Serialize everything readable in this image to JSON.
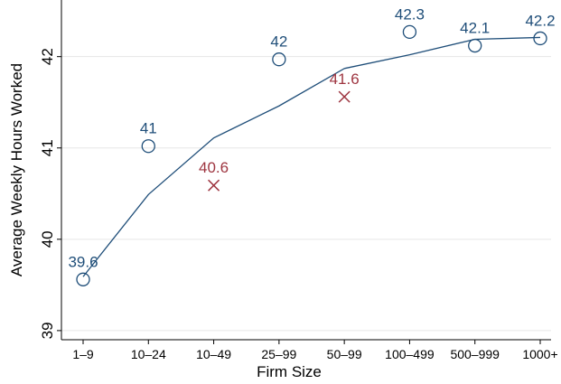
{
  "chart_data": {
    "type": "line-scatter",
    "x_label": "Firm Size",
    "y_label": "Average Weekly Hours Worked",
    "categories": [
      "1–9",
      "10–24",
      "10–49",
      "25–99",
      "50–99",
      "100–499",
      "500–999",
      "1000+"
    ],
    "ylim": [
      38.9,
      42.62
    ],
    "yticks": [
      39,
      40,
      41,
      42
    ],
    "grid": true,
    "series": [
      {
        "kind": "line",
        "color": "#1f4e79",
        "values": [
          39.59,
          40.49,
          41.11,
          41.46,
          41.87,
          42.02,
          42.19,
          42.21
        ]
      },
      {
        "kind": "circle",
        "color": "#1f4e79",
        "values": [
          39.56,
          41.02,
          null,
          41.97,
          null,
          42.27,
          42.12,
          42.2
        ],
        "value_labels": [
          "39.6",
          "41",
          null,
          "42",
          null,
          "42.3",
          "42.1",
          "42.2"
        ]
      },
      {
        "kind": "cross",
        "color": "#9e3540",
        "values": [
          null,
          null,
          40.59,
          null,
          41.56,
          null,
          null,
          null
        ],
        "value_labels": [
          null,
          null,
          "40.6",
          null,
          "41.6",
          null,
          null,
          null
        ]
      }
    ]
  }
}
